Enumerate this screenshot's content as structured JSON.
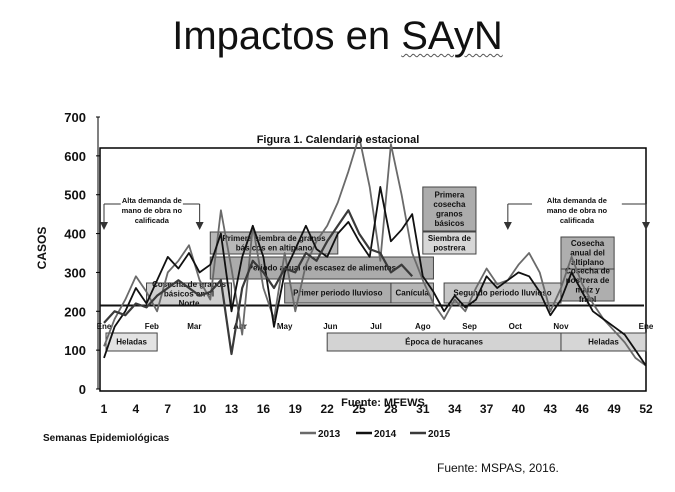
{
  "slide": {
    "title_prefix": "Impactos en ",
    "title_word": "SAyN",
    "footer_source": "Fuente: MSPAS, 2016."
  },
  "chart_data": {
    "type": "line",
    "title": "Figura 1.  Calendario estacional",
    "source": "Fuente: MFEWS",
    "ylabel": "CASOS",
    "xlabel": "Semanas Epidemiológicas",
    "ylim": [
      0,
      700
    ],
    "xlim": [
      1,
      52
    ],
    "yticks": [
      0,
      100,
      200,
      300,
      400,
      500,
      600,
      700
    ],
    "xticks": [
      1,
      4,
      7,
      10,
      13,
      16,
      19,
      22,
      25,
      28,
      31,
      34,
      37,
      40,
      43,
      46,
      49,
      52
    ],
    "months": [
      {
        "label": "Ene",
        "week": 1
      },
      {
        "label": "Feb",
        "week": 5.5
      },
      {
        "label": "Mar",
        "week": 9.5
      },
      {
        "label": "Abr",
        "week": 13.8
      },
      {
        "label": "May",
        "week": 18
      },
      {
        "label": "Jun",
        "week": 22.3
      },
      {
        "label": "Jul",
        "week": 26.6
      },
      {
        "label": "Ago",
        "week": 31
      },
      {
        "label": "Sep",
        "week": 35.4
      },
      {
        "label": "Oct",
        "week": 39.7
      },
      {
        "label": "Nov",
        "week": 44
      },
      {
        "label": "Ene",
        "week": 52
      }
    ],
    "reference_line": 215,
    "series": [
      {
        "name": "2013",
        "color": "#6a6a6a",
        "values": [
          110,
          180,
          230,
          290,
          250,
          200,
          300,
          330,
          370,
          280,
          230,
          460,
          310,
          140,
          420,
          260,
          180,
          350,
          200,
          320,
          380,
          420,
          480,
          560,
          650,
          520,
          330,
          630,
          500,
          350,
          280,
          220,
          180,
          230,
          200,
          260,
          310,
          270,
          280,
          320,
          350,
          300,
          200,
          260,
          340,
          270,
          220,
          180,
          150,
          120,
          80,
          60
        ]
      },
      {
        "name": "2014",
        "color": "#111111",
        "values": [
          80,
          160,
          200,
          260,
          220,
          280,
          340,
          310,
          350,
          300,
          320,
          400,
          200,
          340,
          420,
          340,
          160,
          300,
          360,
          420,
          360,
          340,
          400,
          430,
          380,
          340,
          520,
          380,
          410,
          450,
          290,
          250,
          200,
          240,
          210,
          230,
          290,
          260,
          280,
          300,
          290,
          250,
          190,
          230,
          300,
          250,
          200,
          180,
          160,
          140,
          100,
          60
        ]
      },
      {
        "name": "2015",
        "color": "#3a3a3a",
        "values": [
          170,
          200,
          190,
          220,
          210,
          240,
          260,
          280,
          260,
          240,
          250,
          280,
          90,
          260,
          330,
          300,
          260,
          310,
          300,
          350,
          330,
          380,
          420,
          460,
          400,
          360,
          350,
          300,
          320,
          290
        ]
      }
    ],
    "events": [
      {
        "label": "Alta demanda de mano de obra no calificada",
        "start_week": 1,
        "end_week": 10,
        "kind": "arrow"
      },
      {
        "label": "Alta demanda de mano de obra no calificada",
        "start_week": 39,
        "end_week": 52,
        "kind": "arrow"
      },
      {
        "label": "Heladas",
        "start_week": 1,
        "end_week": 6,
        "kind": "box"
      },
      {
        "label": "Cosecha de granos básicos en el Norte",
        "start_week": 5,
        "end_week": 13,
        "kind": "box"
      },
      {
        "label": "Primera siembra de granos básicos en altiplano",
        "start_week": 11,
        "end_week": 23,
        "kind": "box"
      },
      {
        "label": "Periodo anual de escasez de alimentos",
        "start_week": 11,
        "end_week": 32,
        "kind": "box"
      },
      {
        "label": "Primer periodo lluvioso",
        "start_week": 18,
        "end_week": 28,
        "kind": "box"
      },
      {
        "label": "Canícula",
        "start_week": 28,
        "end_week": 32,
        "kind": "box"
      },
      {
        "label": "Primera cosecha granos básicos",
        "start_week": 31,
        "end_week": 36,
        "kind": "box"
      },
      {
        "label": "Siembra de postrera",
        "start_week": 31,
        "end_week": 36,
        "kind": "box"
      },
      {
        "label": "Segundo periodo lluvioso",
        "start_week": 33,
        "end_week": 44,
        "kind": "box"
      },
      {
        "label": "Época de huracanes",
        "start_week": 22,
        "end_week": 44,
        "kind": "box"
      },
      {
        "label": "Cosecha anual del altiplano",
        "start_week": 44,
        "end_week": 49,
        "kind": "box"
      },
      {
        "label": "Cosecha de postrera de maíz y frijol",
        "start_week": 44,
        "end_week": 49,
        "kind": "box"
      },
      {
        "label": "Heladas",
        "start_week": 44,
        "end_week": 52,
        "kind": "box"
      }
    ]
  }
}
